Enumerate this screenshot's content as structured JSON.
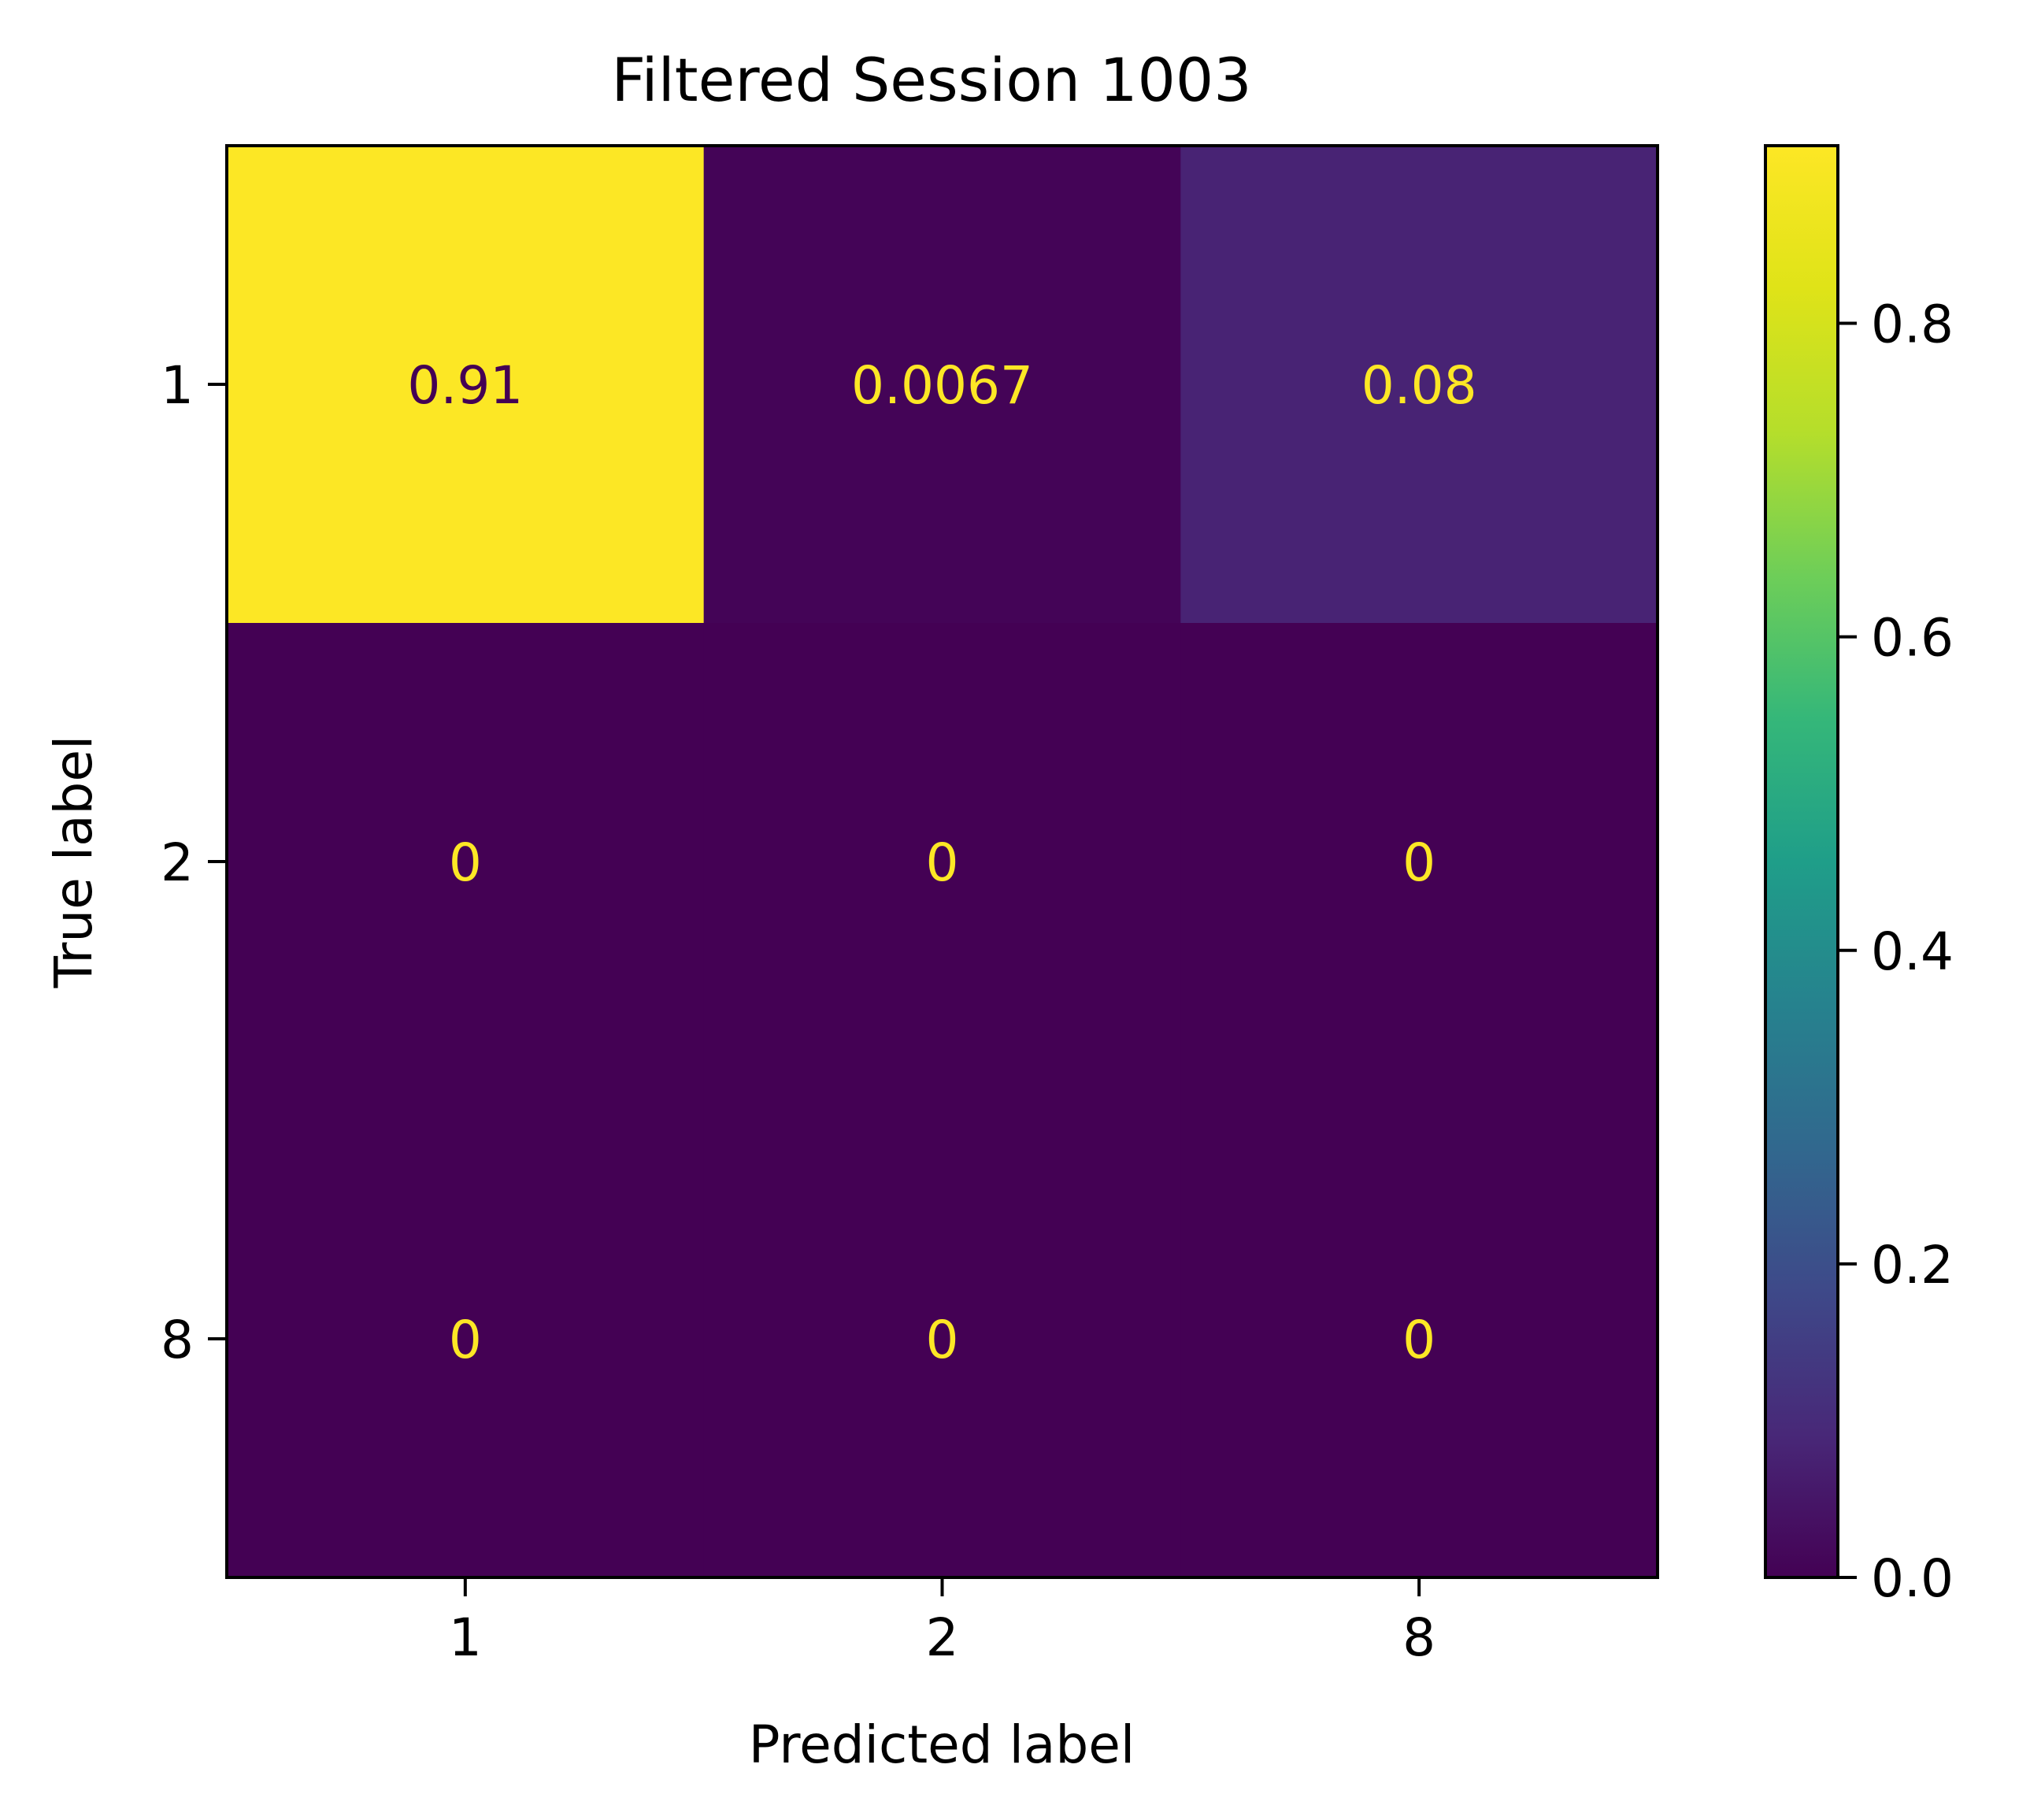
{
  "chart_data": {
    "type": "heatmap",
    "title": "Filtered Session 1003",
    "xlabel": "Predicted label",
    "ylabel": "True label",
    "x_categories": [
      "1",
      "2",
      "8"
    ],
    "y_categories": [
      "1",
      "2",
      "8"
    ],
    "values": [
      [
        0.91,
        0.0067,
        0.08
      ],
      [
        0,
        0,
        0
      ],
      [
        0,
        0,
        0
      ]
    ],
    "cell_labels": [
      [
        "0.91",
        "0.0067",
        "0.08"
      ],
      [
        "0",
        "0",
        "0"
      ],
      [
        "0",
        "0",
        "0"
      ]
    ],
    "colormap": "viridis",
    "colorbar": {
      "range": [
        0.0,
        0.9133
      ],
      "ticks": [
        0.0,
        0.2,
        0.4,
        0.6,
        0.8
      ],
      "tick_labels": [
        "0.0",
        "0.2",
        "0.4",
        "0.6",
        "0.8"
      ]
    },
    "grid": false,
    "colors": {
      "text_on_light": "#440154",
      "text_on_dark": "#fde725",
      "axis": "#000000",
      "background": "#ffffff"
    }
  }
}
